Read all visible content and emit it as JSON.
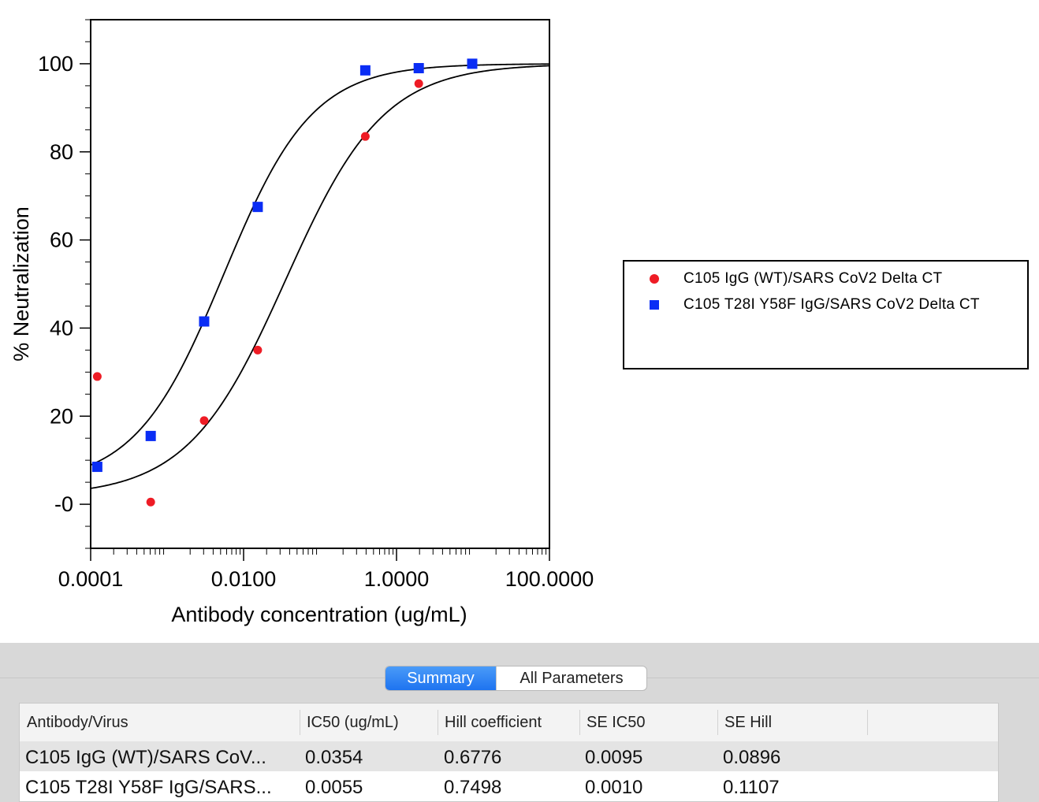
{
  "chart_data": {
    "type": "scatter",
    "xlabel": "Antibody concentration (ug/mL)",
    "ylabel": "% Neutralization",
    "xscale": "log",
    "xlim": [
      0.0001,
      100
    ],
    "ylim": [
      -10,
      110
    ],
    "x_ticks": [
      "0.0001",
      "0.0100",
      "1.0000",
      "100.0000"
    ],
    "y_ticks": [
      "-0",
      "20",
      "40",
      "60",
      "80",
      "100"
    ],
    "legend_position": "right",
    "series": [
      {
        "name": "C105 IgG (WT)/SARS CoV2 Delta CT",
        "marker": "circle",
        "color": "#ee1c25",
        "x": [
          0.000122,
          0.00061,
          0.00305,
          0.0153,
          0.3906,
          1.953,
          9.766
        ],
        "y": [
          29,
          0.5,
          19,
          35,
          83.5,
          95.5,
          100
        ],
        "fit": {
          "ic50": 0.0354,
          "hill": 0.6776
        }
      },
      {
        "name": "C105 T28I Y58F IgG/SARS CoV2 Delta CT",
        "marker": "square",
        "color": "#0a2df5",
        "x": [
          0.000122,
          0.00061,
          0.00305,
          0.0153,
          0.3906,
          1.953,
          9.766
        ],
        "y": [
          8.5,
          15.5,
          41.5,
          67.5,
          98.5,
          99,
          100
        ],
        "fit": {
          "ic50": 0.0055,
          "hill": 0.7498
        }
      }
    ]
  },
  "tabs": {
    "summary": "Summary",
    "all_parameters": "All Parameters"
  },
  "table": {
    "headers": [
      "Antibody/Virus",
      "IC50 (ug/mL)",
      "Hill coefficient",
      "SE IC50",
      "SE Hill"
    ],
    "rows": [
      [
        "C105 IgG (WT)/SARS CoV...",
        "0.0354",
        "0.6776",
        "0.0095",
        "0.0896"
      ],
      [
        "C105 T28I Y58F IgG/SARS...",
        "0.0055",
        "0.7498",
        "0.0010",
        "0.1107"
      ]
    ]
  }
}
